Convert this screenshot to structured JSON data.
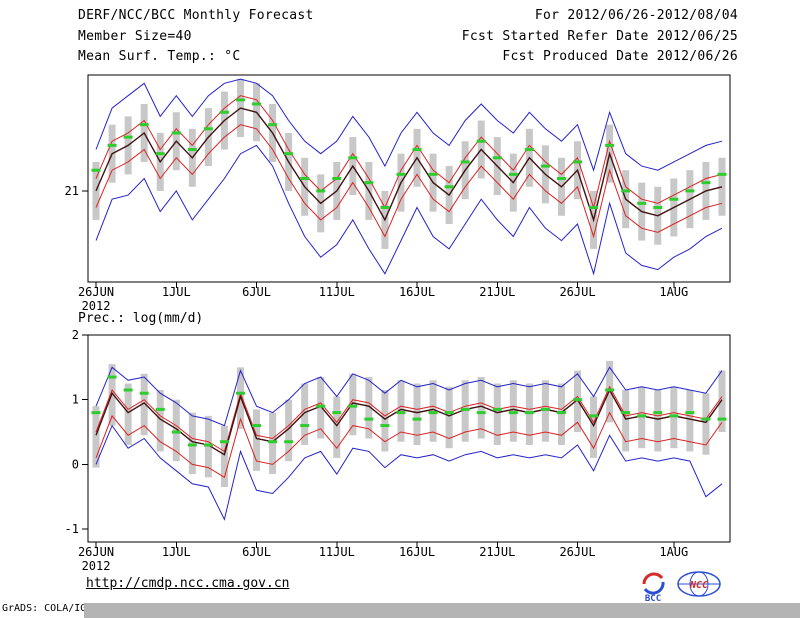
{
  "header": {
    "line1": "DERF/NCC/BCC Monthly Forecast",
    "line2": "Member Size=40",
    "right1": "For 2012/06/26-2012/08/04",
    "right2": "Fcst Started Refer Date 2012/06/25",
    "right3": "Fcst Produced Date 2012/06/26"
  },
  "footer": {
    "url": "http://cmdp.ncc.cma.gov.cn",
    "credit": "GrADS: COLA/IGES",
    "bcc": "BCC",
    "ncc": "NCC"
  },
  "chart_data": [
    {
      "type": "line",
      "title": "Mean Surf. Temp.: °C",
      "xlabel": "",
      "ylabel": "",
      "n": 40,
      "ylim": [
        18.8,
        23.8
      ],
      "yticks": [
        21
      ],
      "grid": false,
      "legend": "none",
      "year_label": "2012",
      "xticks": [
        {
          "i": 0,
          "label": "26JUN"
        },
        {
          "i": 5,
          "label": "1JUL"
        },
        {
          "i": 10,
          "label": "6JUL"
        },
        {
          "i": 15,
          "label": "11JUL"
        },
        {
          "i": 20,
          "label": "16JUL"
        },
        {
          "i": 25,
          "label": "21JUL"
        },
        {
          "i": 30,
          "label": "26JUL"
        },
        {
          "i": 36,
          "label": "1AUG"
        }
      ],
      "series": [
        {
          "name": "ensemble-spread-bar",
          "kind": "range",
          "color": "#c8c8c8",
          "hi": [
            21.7,
            22.6,
            22.8,
            23.1,
            22.4,
            22.9,
            22.5,
            23.0,
            23.4,
            23.7,
            23.6,
            23.1,
            22.4,
            21.8,
            21.4,
            21.7,
            22.3,
            21.7,
            21.0,
            21.9,
            22.5,
            21.9,
            21.6,
            22.2,
            22.7,
            22.3,
            21.9,
            22.5,
            22.1,
            21.8,
            22.2,
            21.0,
            22.6,
            21.5,
            21.2,
            21.1,
            21.3,
            21.5,
            21.7,
            21.8
          ],
          "lo": [
            20.3,
            21.2,
            21.4,
            21.7,
            21.0,
            21.5,
            21.1,
            21.6,
            22.0,
            22.3,
            22.2,
            21.7,
            21.0,
            20.4,
            20.0,
            20.3,
            20.9,
            20.3,
            19.6,
            20.5,
            21.1,
            20.5,
            20.2,
            20.8,
            21.3,
            20.9,
            20.5,
            21.1,
            20.7,
            20.4,
            20.8,
            19.6,
            21.2,
            20.1,
            19.8,
            19.7,
            19.9,
            20.1,
            20.3,
            20.4
          ]
        },
        {
          "name": "ensemble-max",
          "kind": "line",
          "color": "#2323cd",
          "values": [
            22.0,
            23.0,
            23.3,
            23.6,
            22.8,
            23.3,
            22.8,
            23.3,
            23.6,
            23.7,
            23.6,
            23.3,
            22.7,
            22.2,
            21.9,
            22.2,
            22.8,
            22.3,
            21.6,
            22.4,
            22.9,
            22.4,
            22.1,
            22.7,
            23.1,
            22.7,
            22.4,
            22.9,
            22.5,
            22.2,
            22.6,
            21.5,
            22.9,
            21.9,
            21.6,
            21.5,
            21.7,
            21.9,
            22.1,
            22.2
          ]
        },
        {
          "name": "ensemble-min",
          "kind": "line",
          "color": "#2323cd",
          "values": [
            19.8,
            20.8,
            20.9,
            21.3,
            20.5,
            21.0,
            20.3,
            20.8,
            21.3,
            21.9,
            22.1,
            21.6,
            20.7,
            19.9,
            19.4,
            19.7,
            20.3,
            19.6,
            19.0,
            19.8,
            20.6,
            19.9,
            19.6,
            20.2,
            20.8,
            20.3,
            19.9,
            20.6,
            20.1,
            19.8,
            20.2,
            19.0,
            20.7,
            19.5,
            19.2,
            19.1,
            19.4,
            19.6,
            19.9,
            20.1
          ]
        },
        {
          "name": "upper-quartile",
          "kind": "line",
          "color": "#dc2323",
          "values": [
            21.3,
            22.2,
            22.4,
            22.7,
            22.0,
            22.5,
            22.1,
            22.6,
            23.0,
            23.3,
            23.2,
            22.7,
            22.0,
            21.4,
            21.0,
            21.3,
            21.9,
            21.3,
            20.6,
            21.5,
            22.1,
            21.5,
            21.2,
            21.8,
            22.3,
            21.9,
            21.5,
            22.1,
            21.7,
            21.4,
            21.8,
            20.6,
            22.2,
            21.1,
            20.8,
            20.7,
            20.9,
            21.1,
            21.3,
            21.4
          ]
        },
        {
          "name": "lower-quartile",
          "kind": "line",
          "color": "#dc2323",
          "values": [
            20.6,
            21.5,
            21.7,
            22.0,
            21.3,
            21.8,
            21.4,
            21.9,
            22.3,
            22.6,
            22.5,
            22.0,
            21.3,
            20.7,
            20.3,
            20.6,
            21.2,
            20.6,
            19.9,
            20.8,
            21.4,
            20.8,
            20.5,
            21.1,
            21.6,
            21.2,
            20.8,
            21.4,
            21.0,
            20.7,
            21.1,
            19.9,
            21.5,
            20.4,
            20.1,
            20.0,
            20.2,
            20.4,
            20.6,
            20.7
          ]
        },
        {
          "name": "ensemble-mean",
          "kind": "line",
          "color": "#421212",
          "width": 1.4,
          "values": [
            21.0,
            21.9,
            22.1,
            22.4,
            21.7,
            22.2,
            21.8,
            22.3,
            22.7,
            23.0,
            22.9,
            22.4,
            21.7,
            21.1,
            20.7,
            21.0,
            21.6,
            21.0,
            20.3,
            21.2,
            21.8,
            21.2,
            20.9,
            21.5,
            22.0,
            21.6,
            21.2,
            21.8,
            21.4,
            21.1,
            21.5,
            20.3,
            21.9,
            20.8,
            20.5,
            20.4,
            20.6,
            20.8,
            21.0,
            21.1
          ]
        },
        {
          "name": "daily-green-marker",
          "kind": "dash",
          "color": "#2ecc2e",
          "values": [
            21.5,
            22.1,
            22.3,
            22.6,
            21.9,
            22.4,
            22.0,
            22.5,
            22.9,
            23.2,
            23.1,
            22.6,
            21.9,
            21.3,
            21.0,
            21.3,
            21.8,
            21.2,
            20.6,
            21.4,
            22.0,
            21.4,
            21.1,
            21.7,
            22.2,
            21.8,
            21.4,
            22.0,
            21.6,
            21.3,
            21.7,
            20.6,
            22.1,
            21.0,
            20.7,
            20.6,
            20.8,
            21.0,
            21.2,
            21.4
          ]
        }
      ]
    },
    {
      "type": "line",
      "title": "Prec.: log(mm/d)",
      "xlabel": "",
      "ylabel": "",
      "n": 40,
      "ylim": [
        -1.2,
        2.0
      ],
      "yticks": [
        2,
        1,
        0,
        -1
      ],
      "grid": false,
      "legend": "none",
      "year_label": "2012",
      "xticks": [
        {
          "i": 0,
          "label": "26JUN"
        },
        {
          "i": 5,
          "label": "1JUL"
        },
        {
          "i": 10,
          "label": "6JUL"
        },
        {
          "i": 15,
          "label": "11JUL"
        },
        {
          "i": 20,
          "label": "16JUL"
        },
        {
          "i": 25,
          "label": "21JUL"
        },
        {
          "i": 30,
          "label": "26JUL"
        },
        {
          "i": 36,
          "label": "1AUG"
        }
      ],
      "series": [
        {
          "name": "ensemble-spread-bar",
          "kind": "range",
          "color": "#c8c8c8",
          "hi": [
            0.9,
            1.55,
            1.25,
            1.4,
            1.15,
            1.0,
            0.8,
            0.75,
            0.6,
            1.5,
            0.85,
            0.8,
            1.0,
            1.25,
            1.35,
            1.05,
            1.4,
            1.35,
            1.15,
            1.3,
            1.25,
            1.3,
            1.2,
            1.3,
            1.35,
            1.25,
            1.3,
            1.25,
            1.3,
            1.25,
            1.45,
            1.05,
            1.6,
            1.15,
            1.2,
            1.15,
            1.2,
            1.15,
            1.1,
            1.45
          ],
          "lo": [
            -0.05,
            0.6,
            0.3,
            0.45,
            0.2,
            0.05,
            -0.15,
            -0.2,
            -0.35,
            0.55,
            -0.1,
            -0.15,
            0.05,
            0.3,
            0.4,
            0.1,
            0.45,
            0.4,
            0.2,
            0.35,
            0.3,
            0.35,
            0.25,
            0.35,
            0.4,
            0.3,
            0.35,
            0.3,
            0.35,
            0.3,
            0.5,
            0.1,
            0.65,
            0.2,
            0.25,
            0.2,
            0.25,
            0.2,
            0.15,
            0.5
          ]
        },
        {
          "name": "ensemble-max",
          "kind": "line",
          "color": "#2323cd",
          "values": [
            0.9,
            1.5,
            1.3,
            1.35,
            1.1,
            0.95,
            0.75,
            0.7,
            0.6,
            1.45,
            0.9,
            0.8,
            1.0,
            1.25,
            1.35,
            1.05,
            1.4,
            1.3,
            1.1,
            1.3,
            1.2,
            1.25,
            1.15,
            1.25,
            1.3,
            1.2,
            1.25,
            1.2,
            1.25,
            1.2,
            1.4,
            1.05,
            1.5,
            1.15,
            1.2,
            1.15,
            1.2,
            1.15,
            1.1,
            1.45
          ]
        },
        {
          "name": "ensemble-min",
          "kind": "line",
          "color": "#2323cd",
          "values": [
            0.0,
            0.6,
            0.25,
            0.4,
            0.1,
            -0.1,
            -0.3,
            -0.35,
            -0.85,
            0.2,
            -0.4,
            -0.45,
            -0.2,
            0.1,
            0.2,
            -0.15,
            0.25,
            0.2,
            -0.05,
            0.15,
            0.1,
            0.15,
            0.05,
            0.15,
            0.2,
            0.1,
            0.15,
            0.1,
            0.15,
            0.1,
            0.3,
            -0.1,
            0.45,
            0.05,
            0.1,
            0.05,
            0.1,
            0.05,
            -0.5,
            -0.3
          ]
        },
        {
          "name": "upper-quartile",
          "kind": "line",
          "color": "#dc2323",
          "values": [
            0.5,
            1.15,
            0.85,
            1.0,
            0.75,
            0.6,
            0.4,
            0.35,
            0.2,
            1.1,
            0.45,
            0.4,
            0.6,
            0.85,
            0.95,
            0.65,
            1.0,
            0.95,
            0.75,
            0.9,
            0.85,
            0.9,
            0.8,
            0.9,
            0.95,
            0.85,
            0.9,
            0.85,
            0.9,
            0.85,
            1.05,
            0.65,
            1.2,
            0.75,
            0.8,
            0.75,
            0.8,
            0.75,
            0.7,
            1.05
          ]
        },
        {
          "name": "lower-quartile",
          "kind": "line",
          "color": "#dc2323",
          "values": [
            0.1,
            0.75,
            0.45,
            0.6,
            0.35,
            0.2,
            0.0,
            -0.05,
            -0.2,
            0.7,
            0.05,
            0.0,
            0.2,
            0.45,
            0.55,
            0.25,
            0.6,
            0.55,
            0.35,
            0.5,
            0.45,
            0.5,
            0.4,
            0.5,
            0.55,
            0.45,
            0.5,
            0.45,
            0.5,
            0.45,
            0.65,
            0.25,
            0.8,
            0.35,
            0.4,
            0.35,
            0.4,
            0.35,
            0.3,
            0.65
          ]
        },
        {
          "name": "ensemble-mean",
          "kind": "line",
          "color": "#421212",
          "width": 1.4,
          "values": [
            0.45,
            1.1,
            0.8,
            0.95,
            0.7,
            0.55,
            0.35,
            0.3,
            0.15,
            1.05,
            0.4,
            0.35,
            0.55,
            0.8,
            0.9,
            0.6,
            0.95,
            0.9,
            0.7,
            0.85,
            0.8,
            0.85,
            0.75,
            0.85,
            0.9,
            0.8,
            0.85,
            0.8,
            0.85,
            0.8,
            1.0,
            0.6,
            1.15,
            0.7,
            0.75,
            0.7,
            0.75,
            0.7,
            0.65,
            1.0
          ]
        },
        {
          "name": "daily-green-marker",
          "kind": "dash",
          "color": "#2ecc2e",
          "values": [
            0.8,
            1.35,
            1.15,
            1.1,
            0.85,
            0.5,
            0.3,
            0.3,
            0.35,
            1.1,
            0.6,
            0.35,
            0.35,
            0.6,
            0.9,
            0.8,
            0.9,
            0.7,
            0.6,
            0.8,
            0.7,
            0.8,
            0.8,
            0.85,
            0.8,
            0.85,
            0.8,
            0.8,
            0.85,
            0.8,
            1.0,
            0.75,
            1.15,
            0.8,
            0.75,
            0.8,
            0.75,
            0.8,
            0.7,
            0.7
          ]
        }
      ]
    }
  ]
}
